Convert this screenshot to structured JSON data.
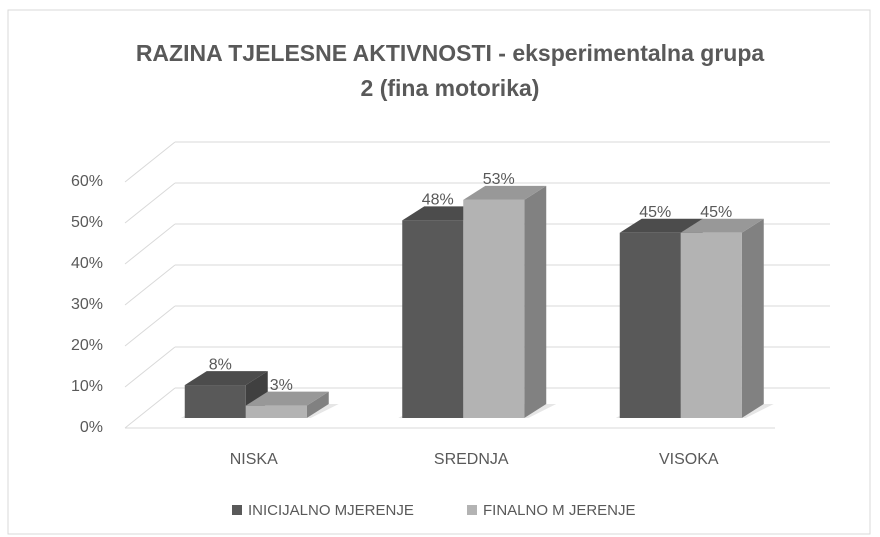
{
  "chart_data": {
    "type": "bar3d",
    "title": [
      "RAZINA TJELESNE AKTIVNOSTI - eksperimentalna grupa",
      "2 (fina motorika)"
    ],
    "categories": [
      "NISKA",
      "SREDNJA",
      "VISOKA"
    ],
    "series": [
      {
        "name": "INICIJALNO MJERENJE",
        "color": "#595959",
        "values": [
          8,
          48,
          45
        ],
        "value_labels": [
          "8%",
          "48%",
          "45%"
        ]
      },
      {
        "name": "FINALNO M JERENJE",
        "color": "#b3b3b3",
        "values": [
          3,
          53,
          45
        ],
        "value_labels": [
          "3%",
          "53%",
          "45%"
        ]
      }
    ],
    "ylim": [
      0,
      60
    ],
    "yticks": [
      {
        "value": 0,
        "label": "0%"
      },
      {
        "value": 10,
        "label": "10%"
      },
      {
        "value": 20,
        "label": "20%"
      },
      {
        "value": 30,
        "label": "30%"
      },
      {
        "value": 40,
        "label": "40%"
      },
      {
        "value": 50,
        "label": "50%"
      },
      {
        "value": 60,
        "label": "60%"
      }
    ],
    "grid": true,
    "legend": "bottom"
  }
}
